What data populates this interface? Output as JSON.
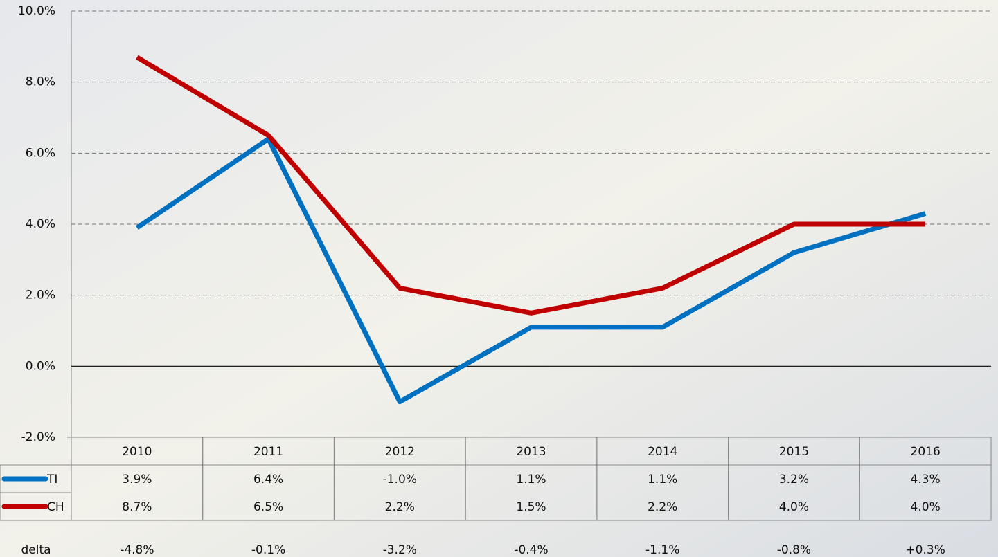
{
  "chart_data": {
    "type": "line",
    "categories": [
      "2010",
      "2011",
      "2012",
      "2013",
      "2014",
      "2015",
      "2016"
    ],
    "series": [
      {
        "name": "TI",
        "color": "#0070c0",
        "values": [
          3.9,
          6.4,
          -1.0,
          1.1,
          1.1,
          3.2,
          4.3
        ],
        "value_labels": [
          "3.9%",
          "6.4%",
          "-1.0%",
          "1.1%",
          "1.1%",
          "3.2%",
          "4.3%"
        ]
      },
      {
        "name": "CH",
        "color": "#c00000",
        "values": [
          8.7,
          6.5,
          2.2,
          1.5,
          2.2,
          4.0,
          4.0
        ],
        "value_labels": [
          "8.7%",
          "6.5%",
          "2.2%",
          "1.5%",
          "2.2%",
          "4.0%",
          "4.0%"
        ]
      }
    ],
    "delta": {
      "name": "delta",
      "values": [
        -4.8,
        -0.1,
        -3.2,
        -0.4,
        -1.1,
        -0.8,
        0.3
      ],
      "value_labels": [
        "-4.8%",
        "-0.1%",
        "-3.2%",
        "-0.4%",
        "-1.1%",
        "-0.8%",
        "+0.3%"
      ]
    },
    "ylim": [
      -2,
      10
    ],
    "yticks": [
      {
        "value": -2,
        "label": "-2.0%"
      },
      {
        "value": 0,
        "label": "0.0%"
      },
      {
        "value": 2,
        "label": "2.0%"
      },
      {
        "value": 4,
        "label": "4.0%"
      },
      {
        "value": 6,
        "label": "6.0%"
      },
      {
        "value": 8,
        "label": "8.0%"
      },
      {
        "value": 10,
        "label": "10.0%"
      }
    ],
    "grid": true
  }
}
